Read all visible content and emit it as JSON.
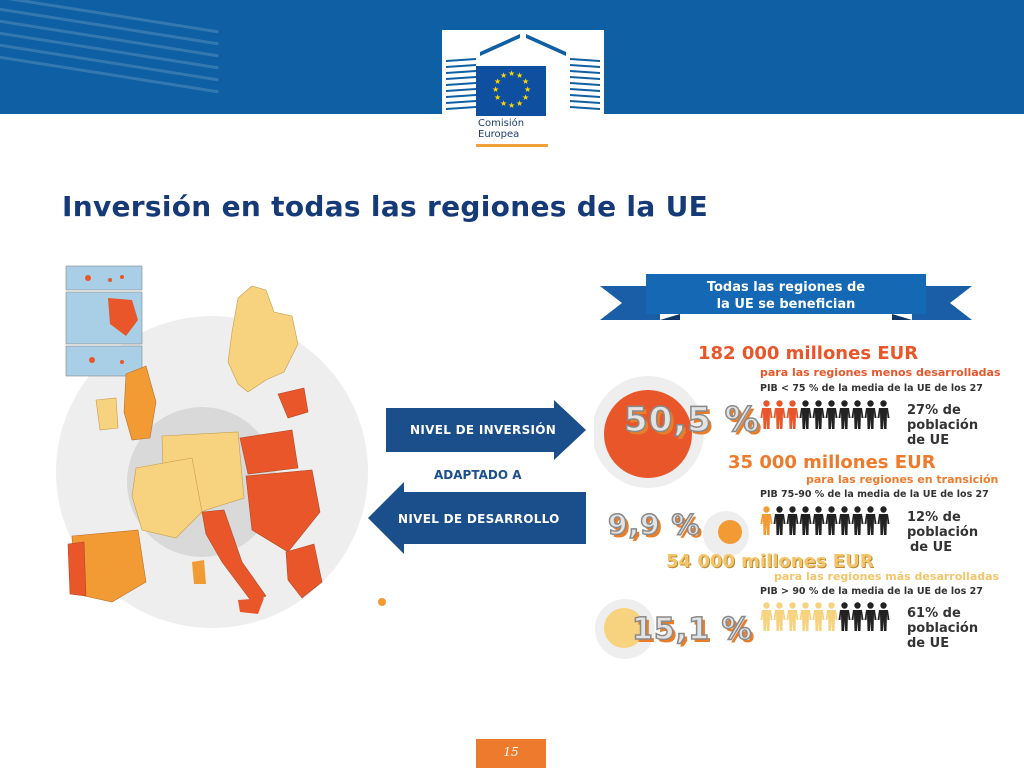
{
  "header": {
    "logo_line1": "Comisión",
    "logo_line2": "Europea"
  },
  "title": "Inversión en todas las regiones de la UE",
  "arrows": {
    "investment": "NIVEL DE INVERSIÓN",
    "adapted": "ADAPTADO A",
    "development": "NIVEL DE DESARROLLO"
  },
  "banner": {
    "line1": "Todas las regiones de",
    "line2": "la UE se benefician"
  },
  "categories": [
    {
      "percent": "50,5 %",
      "amount": "182 000 millones EUR",
      "subtitle": "para las regiones menos desarrolladas",
      "pib": "PIB < 75 % de la media de la UE de los 27",
      "population_line1": "27% de",
      "population_line2": "población",
      "population_line3": "de UE",
      "population_share": 0.27,
      "color": "#e8562a"
    },
    {
      "percent": "9,9 %",
      "amount": "35 000 millones EUR",
      "subtitle": "para las regiones en transición",
      "pib": "PIB 75-90 % de la media de la UE de los 27",
      "population_line1": "12% de",
      "population_line2": "población",
      "population_line3": "de UE",
      "population_share": 0.12,
      "color": "#f29a33"
    },
    {
      "percent": "15,1 %",
      "amount": "54 000 millones EUR",
      "subtitle": "para las regiones más desarrolladas",
      "pib": "PIB > 90 % de la media de la UE de los 27",
      "population_line1": "61% de",
      "population_line2": "población",
      "population_line3": "de UE",
      "population_share": 0.61,
      "color": "#f7d27f"
    }
  ],
  "page_number": "15",
  "colors": {
    "header_blue": "#0e5fa3",
    "title_blue": "#163a78",
    "arrow_blue": "#1a4f8c",
    "orange": "#ee7b2d"
  }
}
